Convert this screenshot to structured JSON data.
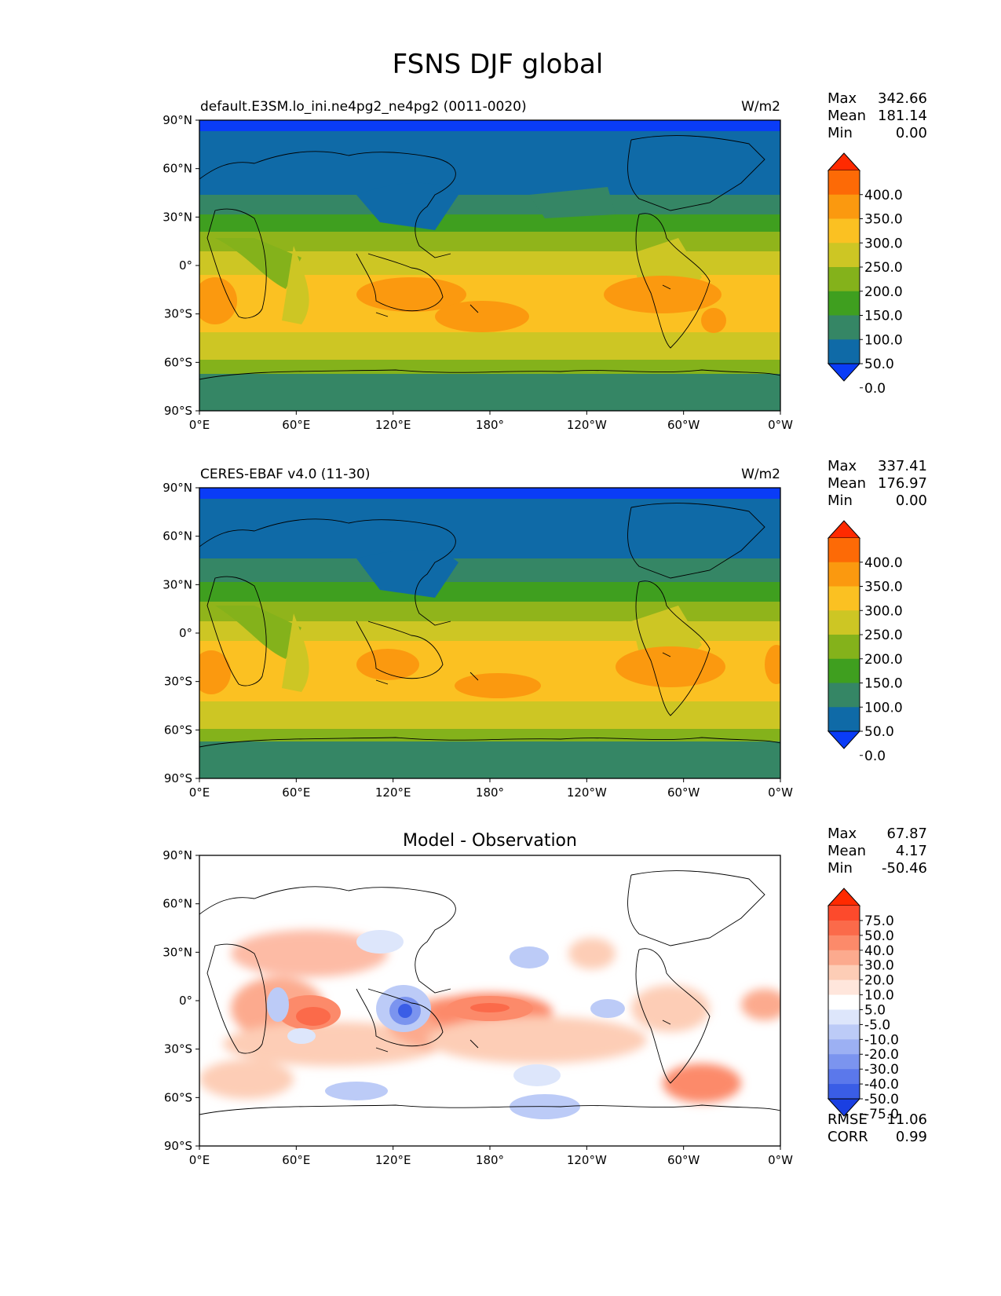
{
  "title": "FSNS DJF global",
  "lon_ticks": [
    "0°E",
    "60°E",
    "120°E",
    "180°",
    "120°W",
    "60°W",
    "0°W"
  ],
  "lat_ticks": [
    "90°N",
    "60°N",
    "30°N",
    "0°",
    "30°S",
    "60°S",
    "90°S"
  ],
  "panels": [
    {
      "name": "model",
      "left_title": "default.E3SM.lo_ini.ne4pg2_ne4pg2 (0011-0020)",
      "center_title": "",
      "units": "W/m2",
      "stats": [
        {
          "label": "Max",
          "value": "342.66"
        },
        {
          "label": "Mean",
          "value": "181.14"
        },
        {
          "label": "Min",
          "value": "0.00"
        }
      ],
      "colorbar": {
        "labels": [
          "400.0",
          "350.0",
          "300.0",
          "250.0",
          "200.0",
          "150.0",
          "100.0",
          "50.0",
          "0.0"
        ],
        "colors": [
          "#ff2a00",
          "#fd6a06",
          "#fb990f",
          "#fbc122",
          "#cdc624",
          "#84b21b",
          "#3f9f1f",
          "#358665",
          "#0f6aa7",
          "#0a3cf7"
        ]
      }
    },
    {
      "name": "obs",
      "left_title": "CERES-EBAF v4.0 (11-30)",
      "center_title": "",
      "units": "W/m2",
      "stats": [
        {
          "label": "Max",
          "value": "337.41"
        },
        {
          "label": "Mean",
          "value": "176.97"
        },
        {
          "label": "Min",
          "value": "0.00"
        }
      ],
      "colorbar": {
        "labels": [
          "400.0",
          "350.0",
          "300.0",
          "250.0",
          "200.0",
          "150.0",
          "100.0",
          "50.0",
          "0.0"
        ],
        "colors": [
          "#ff2a00",
          "#fd6a06",
          "#fb990f",
          "#fbc122",
          "#cdc624",
          "#84b21b",
          "#3f9f1f",
          "#358665",
          "#0f6aa7",
          "#0a3cf7"
        ]
      }
    },
    {
      "name": "diff",
      "left_title": "",
      "center_title": "Model - Observation",
      "units": "",
      "stats": [
        {
          "label": "Max",
          "value": "67.87"
        },
        {
          "label": "Mean",
          "value": "4.17"
        },
        {
          "label": "Min",
          "value": "-50.46"
        }
      ],
      "colorbar": {
        "labels": [
          "75.0",
          "50.0",
          "40.0",
          "30.0",
          "20.0",
          "10.0",
          "5.0",
          "-5.0",
          "-10.0",
          "-20.0",
          "-30.0",
          "-40.0",
          "-50.0",
          "-75.0"
        ],
        "colors": [
          "#ff2a00",
          "#fd4a2c",
          "#fb6a4a",
          "#fc8a6a",
          "#fcaa8e",
          "#fdcdb6",
          "#ffe6dc",
          "#ffffff",
          "#dde6fb",
          "#bccbf7",
          "#9cb0f3",
          "#7b94ef",
          "#5b78eb",
          "#3a5de6",
          "#1a3fe2"
        ]
      },
      "extra_stats": [
        {
          "label": "RMSE",
          "value": "11.06"
        },
        {
          "label": "CORR",
          "value": "0.99"
        }
      ]
    }
  ]
}
